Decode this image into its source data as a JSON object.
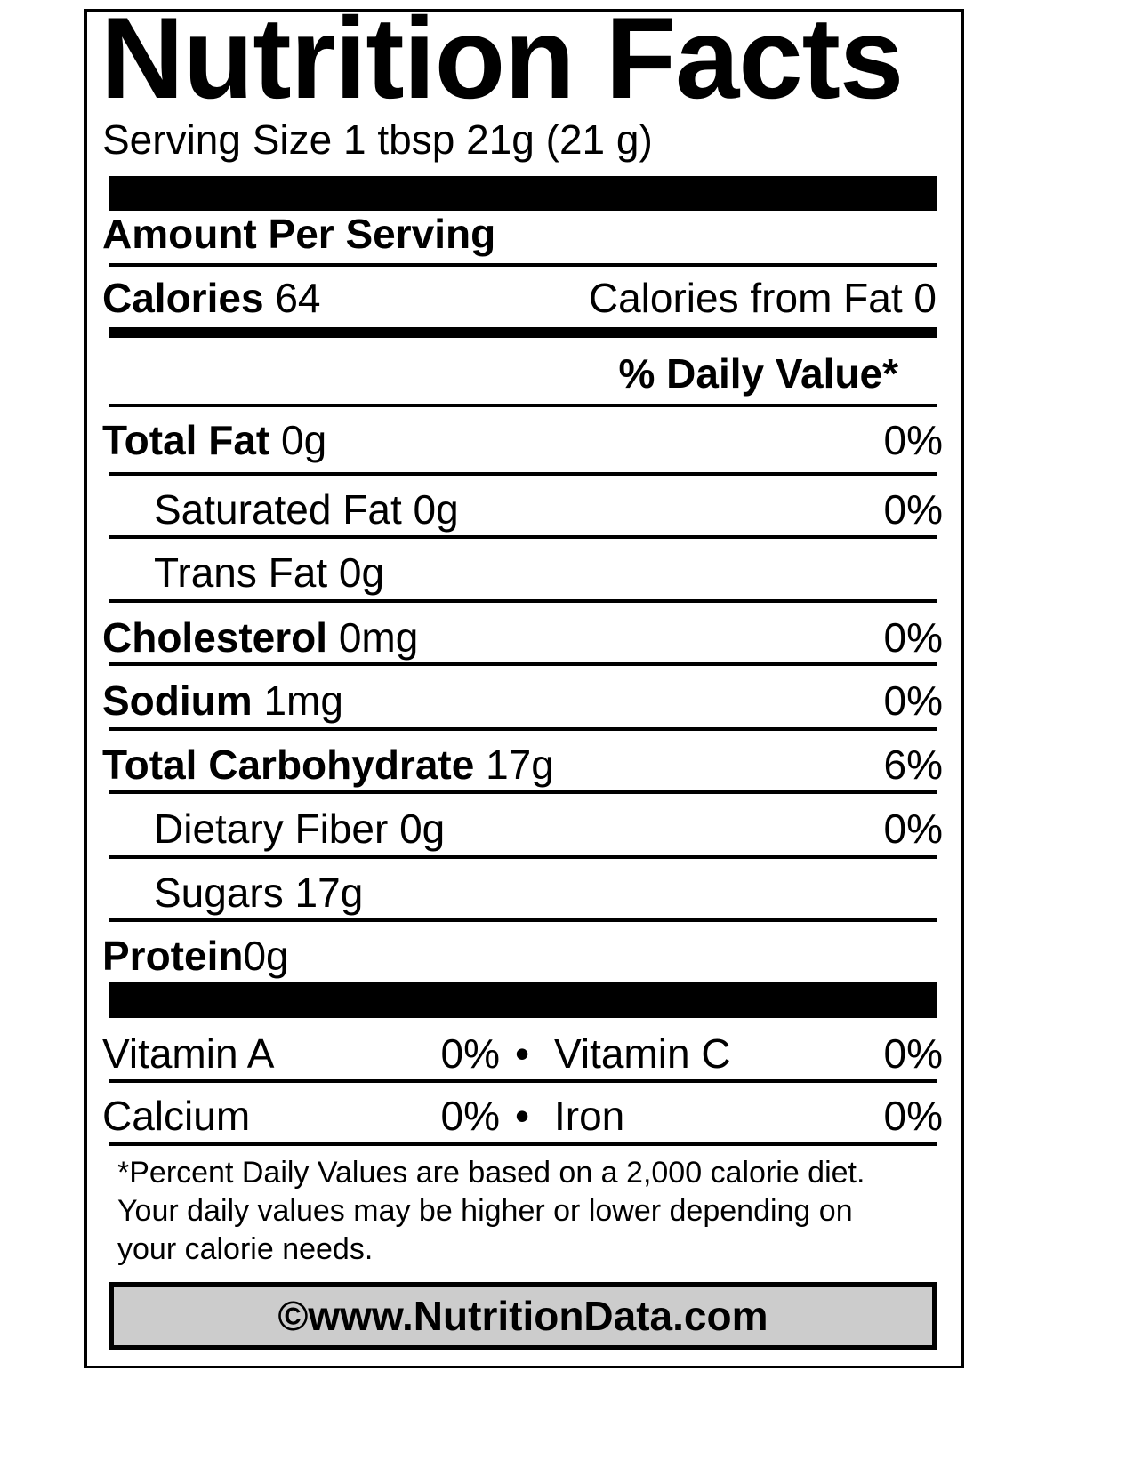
{
  "title": "Nutrition Facts",
  "serving_size": "Serving Size 1 tbsp 21g (21 g)",
  "amount_per_serving": "Amount Per Serving",
  "calories": {
    "label": "Calories",
    "value": "64",
    "from_fat": "Calories from Fat 0"
  },
  "daily_value_header": "% Daily Value*",
  "nutrients": [
    {
      "label": "Total Fat",
      "amount": "0g",
      "dv": "0%"
    },
    {
      "label": "Saturated Fat",
      "amount": "0g",
      "dv": "0%"
    },
    {
      "label": "Trans Fat",
      "amount": "0g",
      "dv": ""
    },
    {
      "label": "Cholesterol",
      "amount": "0mg",
      "dv": "0%"
    },
    {
      "label": "Sodium",
      "amount": "1mg",
      "dv": "0%"
    },
    {
      "label": "Total Carbohydrate",
      "amount": "17g",
      "dv": "6%"
    },
    {
      "label": "Dietary Fiber",
      "amount": "0g",
      "dv": "0%"
    },
    {
      "label": "Sugars",
      "amount": "17g",
      "dv": ""
    },
    {
      "label": "Protein",
      "amount": "0g",
      "dv": ""
    }
  ],
  "vitamins": [
    {
      "left_label": "Vitamin A",
      "left_dv": "0%",
      "bullet": "•",
      "right_label": "Vitamin C",
      "right_dv": "0%"
    },
    {
      "left_label": "Calcium",
      "left_dv": "0%",
      "bullet": "•",
      "right_label": "Iron",
      "right_dv": "0%"
    }
  ],
  "footnote": [
    "*Percent Daily Values are based on a 2,000 calorie diet.",
    "Your daily values may be higher or lower depending on",
    "your calorie needs."
  ],
  "credit": "©www.NutritionData.com"
}
